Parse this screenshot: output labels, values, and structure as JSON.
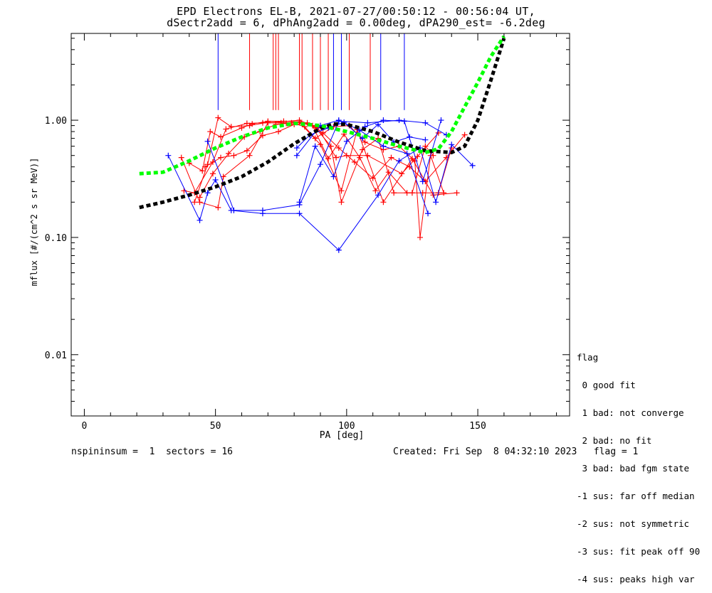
{
  "titles": {
    "line1": "EPD Electrons EL-B, 2021-07-27/00:50:12 - 00:56:04 UT,",
    "line2": "dSectr2add = 6, dPhAng2add = 0.00deg, dPA290_est=  -6.2deg"
  },
  "footer": {
    "left": "nspininsum =  1  sectors = 16",
    "right": "Created: Fri Sep  8 04:32:10 2023   flag = 1"
  },
  "legend": {
    "title": "flag",
    "items": [
      " 0 good fit",
      " 1 bad: not converge",
      " 2 bad: no fit",
      " 3 bad: bad fgm state",
      "-1 sus: far off median",
      "-2 sus: not symmetric",
      "-3 sus: fit peak off 90",
      "-4 sus: peaks high var"
    ]
  },
  "chart_data": {
    "type": "line",
    "xlabel": "PA [deg]",
    "ylabel": "mflux [#/(cm^2 s sr MeV)]",
    "xlim": [
      -5,
      185
    ],
    "ylim": [
      0.003,
      5.5
    ],
    "y_scale": "log",
    "x_ticks": [
      0,
      50,
      100,
      150
    ],
    "x_tick_labels": [
      "0",
      "50",
      "100",
      "150"
    ],
    "y_ticks": [
      0.01,
      0.1,
      1.0
    ],
    "y_tick_labels": [
      "0.01",
      "0.10",
      "1.00"
    ],
    "colors": {
      "red": "#ff0000",
      "blue": "#0000ff",
      "green": "#00ff00",
      "black": "#000000"
    },
    "vertical_markers": {
      "blue": [
        51,
        95,
        98,
        113,
        122
      ],
      "red": [
        63,
        72,
        73,
        74,
        82,
        83,
        87,
        90,
        93,
        101,
        109
      ]
    },
    "series": [
      {
        "color": "red",
        "x": [
          37,
          44,
          51,
          53,
          63,
          70,
          82,
          89,
          96,
          100,
          108,
          121,
          127,
          135
        ],
        "y": [
          0.48,
          0.2,
          0.18,
          0.33,
          0.5,
          0.95,
          1.0,
          0.86,
          0.48,
          0.5,
          0.5,
          0.35,
          0.49,
          0.78
        ]
      },
      {
        "color": "red",
        "x": [
          38,
          42,
          49,
          54,
          62,
          68,
          75,
          82,
          90,
          98,
          104,
          114,
          125,
          133,
          142
        ],
        "y": [
          0.25,
          0.24,
          0.44,
          0.84,
          0.94,
          0.95,
          0.95,
          0.96,
          0.62,
          0.25,
          0.83,
          0.2,
          0.47,
          0.23,
          0.24
        ]
      },
      {
        "color": "red",
        "x": [
          40,
          45,
          48,
          52,
          60,
          64,
          70,
          76,
          82,
          88,
          94,
          98,
          106,
          112,
          118,
          125,
          130,
          133
        ],
        "y": [
          0.43,
          0.37,
          0.8,
          0.72,
          0.86,
          0.93,
          0.98,
          0.98,
          0.97,
          0.87,
          0.6,
          0.2,
          0.56,
          0.7,
          0.24,
          0.24,
          0.6,
          0.5
        ]
      },
      {
        "color": "red",
        "x": [
          42,
          47,
          51,
          56,
          63,
          70,
          77,
          82,
          87,
          93,
          99,
          105,
          111,
          116,
          123,
          129,
          135,
          140
        ],
        "y": [
          0.2,
          0.42,
          1.05,
          0.88,
          0.9,
          0.96,
          0.94,
          0.96,
          0.9,
          0.47,
          0.76,
          0.48,
          0.25,
          0.36,
          0.24,
          0.24,
          0.24,
          0.58
        ]
      },
      {
        "color": "red",
        "x": [
          44,
          49,
          55,
          61,
          67,
          73,
          79,
          84,
          88,
          95,
          101,
          107,
          114,
          120,
          126,
          128,
          132,
          137
        ],
        "y": [
          0.22,
          0.35,
          0.52,
          0.72,
          0.8,
          0.92,
          0.95,
          0.88,
          0.7,
          0.88,
          0.9,
          0.65,
          0.56,
          0.6,
          0.45,
          0.1,
          0.5,
          0.24
        ]
      },
      {
        "color": "red",
        "x": [
          46,
          52,
          57,
          62,
          68,
          74,
          80,
          85,
          91,
          97,
          103,
          110,
          117,
          124,
          130,
          138,
          145
        ],
        "y": [
          0.4,
          0.48,
          0.5,
          0.55,
          0.74,
          0.8,
          0.92,
          0.95,
          0.78,
          0.58,
          0.44,
          0.32,
          0.48,
          0.4,
          0.3,
          0.48,
          0.75
        ]
      },
      {
        "color": "blue",
        "x": [
          32,
          44,
          47,
          50,
          56,
          68,
          82,
          97,
          112,
          120,
          128,
          134,
          140,
          148
        ],
        "y": [
          0.5,
          0.14,
          0.24,
          0.31,
          0.17,
          0.16,
          0.16,
          0.078,
          0.23,
          0.45,
          0.58,
          0.2,
          0.62,
          0.41
        ]
      },
      {
        "color": "blue",
        "x": [
          47,
          57,
          68,
          82,
          90,
          97,
          108,
          120,
          130,
          138
        ],
        "y": [
          0.66,
          0.17,
          0.17,
          0.19,
          0.42,
          0.98,
          0.95,
          1.0,
          0.95,
          0.75
        ]
      },
      {
        "color": "blue",
        "x": [
          81,
          90,
          97,
          105,
          114,
          123,
          131
        ],
        "y": [
          0.5,
          0.9,
          1.0,
          0.82,
          0.6,
          0.52,
          0.16
        ]
      },
      {
        "color": "blue",
        "x": [
          82,
          88,
          95,
          100,
          107,
          114,
          122,
          129,
          136
        ],
        "y": [
          0.2,
          0.6,
          0.33,
          0.66,
          0.88,
          1.0,
          0.98,
          0.3,
          1.0
        ]
      },
      {
        "color": "blue",
        "x": [
          81,
          86,
          93,
          99,
          106,
          112,
          118,
          124,
          130
        ],
        "y": [
          0.58,
          0.75,
          0.86,
          0.96,
          0.7,
          0.92,
          0.65,
          0.72,
          0.68
        ]
      }
    ],
    "fit_curves": [
      {
        "color": "black",
        "style": "dashed",
        "x": [
          21,
          30,
          40,
          50,
          60,
          70,
          80,
          90,
          95,
          100,
          110,
          120,
          130,
          140,
          145,
          150,
          155,
          160
        ],
        "y": [
          0.18,
          0.2,
          0.23,
          0.27,
          0.33,
          0.44,
          0.63,
          0.85,
          0.93,
          0.92,
          0.8,
          0.65,
          0.55,
          0.53,
          0.6,
          1.0,
          2.2,
          5.0
        ]
      },
      {
        "color": "green",
        "style": "dashed",
        "x": [
          21,
          30,
          40,
          50,
          60,
          70,
          80,
          90,
          100,
          110,
          120,
          130,
          135,
          140,
          145,
          150,
          155,
          160
        ],
        "y": [
          0.35,
          0.36,
          0.45,
          0.58,
          0.72,
          0.86,
          0.94,
          0.9,
          0.8,
          0.7,
          0.6,
          0.53,
          0.57,
          0.8,
          1.3,
          2.1,
          3.5,
          5.2
        ]
      }
    ]
  }
}
